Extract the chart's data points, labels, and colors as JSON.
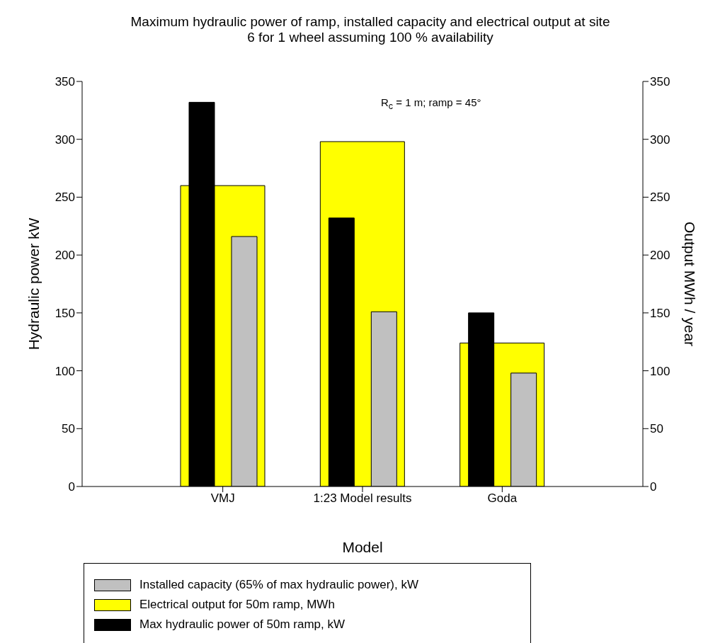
{
  "chart_data": {
    "type": "bar",
    "title": "Maximum hydraulic power of ramp, installed capacity and electrical output at site 6 for 1 wheel assuming 100 % availability",
    "xlabel": "Model",
    "ylabel": "Hydraulic power kW",
    "y2label": "Output MWh / year",
    "categories": [
      "VMJ",
      "1:23 Model results",
      "Goda"
    ],
    "series": [
      {
        "name": "Max hydraulic power of 50m ramp, kW",
        "color": "#000000",
        "values": [
          332,
          232,
          150
        ]
      },
      {
        "name": "Electrical output for 50m ramp, MWh",
        "color": "#ffff00",
        "values": [
          260,
          298,
          124
        ],
        "axis": "y2"
      },
      {
        "name": "Installed capacity (65% of max hydraulic power), kW",
        "color": "#c0c0c0",
        "values": [
          216,
          151,
          98
        ]
      }
    ],
    "ylim": [
      0,
      350
    ],
    "yticks": [
      0,
      50,
      100,
      150,
      200,
      250,
      300,
      350
    ],
    "y2lim": [
      0,
      350
    ],
    "y2ticks": [
      0,
      50,
      100,
      150,
      200,
      250,
      300,
      350
    ],
    "annotations": [
      "R$_{c}$ = 1 m; ramp = 45°"
    ],
    "legend": "bottom",
    "grid": false
  }
}
